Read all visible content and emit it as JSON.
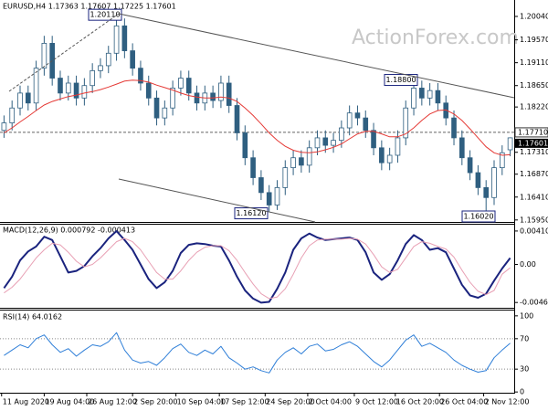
{
  "chart_data": [
    {
      "type": "candlestick",
      "title": "EURUSD,H4 1.17363 1.17607 1.17225 1.17601",
      "watermark": "ActionForex.com",
      "xlim": [
        0,
        64
      ],
      "ylim": [
        1.1591,
        1.2037
      ],
      "color": "#2f5f80",
      "up_fill": "#ffffff",
      "yticks": [
        {
          "value": 1.2004,
          "label": "1.20040"
        },
        {
          "value": 1.1957,
          "label": "1.19570"
        },
        {
          "value": 1.1911,
          "label": "1.19110"
        },
        {
          "value": 1.1865,
          "label": "1.18650"
        },
        {
          "value": 1.1822,
          "label": "1.18220"
        },
        {
          "value": 1.1731,
          "label": "1.17310"
        },
        {
          "value": 1.1687,
          "label": "1.16870"
        },
        {
          "value": 1.1641,
          "label": "1.16410"
        },
        {
          "value": 1.1595,
          "label": "1.15950"
        }
      ],
      "candles": {
        "open": [
          1.1775,
          1.179,
          1.182,
          1.185,
          1.183,
          1.19,
          1.195,
          1.188,
          1.185,
          1.187,
          1.184,
          1.1865,
          1.1895,
          1.1905,
          1.193,
          1.1985,
          1.1935,
          1.19,
          1.187,
          1.184,
          1.18,
          1.182,
          1.186,
          1.188,
          1.185,
          1.183,
          1.185,
          1.1835,
          1.187,
          1.1825,
          1.177,
          1.172,
          1.168,
          1.165,
          1.1625,
          1.166,
          1.17,
          1.172,
          1.1705,
          1.174,
          1.176,
          1.1745,
          1.1755,
          1.178,
          1.181,
          1.18,
          1.1775,
          1.174,
          1.171,
          1.1725,
          1.176,
          1.182,
          1.186,
          1.184,
          1.1855,
          1.183,
          1.18,
          1.176,
          1.172,
          1.169,
          1.166,
          1.164,
          1.17,
          1.1736
        ],
        "high": [
          1.1805,
          1.1835,
          1.1865,
          1.1865,
          1.1915,
          1.1965,
          1.1965,
          1.1895,
          1.1885,
          1.1885,
          1.188,
          1.191,
          1.192,
          1.1945,
          1.2011,
          1.2,
          1.195,
          1.1915,
          1.1885,
          1.1855,
          1.1835,
          1.1875,
          1.1895,
          1.1895,
          1.1865,
          1.1865,
          1.1865,
          1.1885,
          1.1885,
          1.184,
          1.1785,
          1.1735,
          1.1695,
          1.1665,
          1.1675,
          1.1715,
          1.1735,
          1.1735,
          1.1755,
          1.1775,
          1.1775,
          1.177,
          1.1795,
          1.1825,
          1.1825,
          1.1815,
          1.179,
          1.1755,
          1.174,
          1.1775,
          1.1835,
          1.188,
          1.1875,
          1.187,
          1.187,
          1.1845,
          1.1815,
          1.1775,
          1.1735,
          1.1705,
          1.1675,
          1.1715,
          1.1745,
          1.1761
        ],
        "low": [
          1.176,
          1.1775,
          1.1805,
          1.1815,
          1.1815,
          1.1885,
          1.1865,
          1.1835,
          1.1835,
          1.1825,
          1.1825,
          1.185,
          1.188,
          1.189,
          1.1915,
          1.192,
          1.1885,
          1.1855,
          1.1825,
          1.1785,
          1.1785,
          1.1805,
          1.1845,
          1.1835,
          1.1815,
          1.1815,
          1.182,
          1.182,
          1.181,
          1.1755,
          1.1705,
          1.1665,
          1.1635,
          1.1612,
          1.1615,
          1.1645,
          1.1685,
          1.169,
          1.169,
          1.1725,
          1.173,
          1.173,
          1.174,
          1.1765,
          1.1785,
          1.176,
          1.1725,
          1.1695,
          1.1695,
          1.171,
          1.1745,
          1.1805,
          1.1825,
          1.1825,
          1.1815,
          1.1785,
          1.1745,
          1.1705,
          1.1675,
          1.1645,
          1.1602,
          1.1625,
          1.1685,
          1.1723
        ],
        "close": [
          1.179,
          1.182,
          1.185,
          1.183,
          1.19,
          1.195,
          1.188,
          1.185,
          1.187,
          1.184,
          1.1865,
          1.1895,
          1.1905,
          1.193,
          1.1985,
          1.1935,
          1.19,
          1.187,
          1.184,
          1.18,
          1.182,
          1.186,
          1.188,
          1.185,
          1.183,
          1.185,
          1.1835,
          1.187,
          1.1825,
          1.177,
          1.172,
          1.168,
          1.165,
          1.1625,
          1.166,
          1.17,
          1.172,
          1.1705,
          1.174,
          1.176,
          1.1745,
          1.1755,
          1.178,
          1.181,
          1.18,
          1.1775,
          1.174,
          1.171,
          1.1725,
          1.176,
          1.182,
          1.186,
          1.184,
          1.1855,
          1.183,
          1.18,
          1.176,
          1.172,
          1.169,
          1.166,
          1.164,
          1.17,
          1.173,
          1.176
        ]
      },
      "overlay": {
        "color": "#e53935",
        "values": [
          1.177,
          1.178,
          1.1792,
          1.1803,
          1.1815,
          1.1826,
          1.1833,
          1.1838,
          1.1843,
          1.1846,
          1.185,
          1.1853,
          1.1857,
          1.1862,
          1.1868,
          1.1874,
          1.1876,
          1.1875,
          1.1872,
          1.1866,
          1.1861,
          1.1856,
          1.185,
          1.1845,
          1.1842,
          1.184,
          1.184,
          1.1842,
          1.184,
          1.1833,
          1.182,
          1.1805,
          1.1788,
          1.177,
          1.1755,
          1.1743,
          1.1735,
          1.1731,
          1.173,
          1.1732,
          1.1736,
          1.1741,
          1.1748,
          1.1758,
          1.1768,
          1.1773,
          1.1773,
          1.1768,
          1.1762,
          1.1762,
          1.1768,
          1.178,
          1.1795,
          1.1808,
          1.1815,
          1.1816,
          1.1808,
          1.1795,
          1.1778,
          1.176,
          1.1742,
          1.173,
          1.1725,
          1.1726
        ]
      },
      "annotations": [
        {
          "value": 1.2011,
          "label": "1.20110"
        },
        {
          "value": 1.188,
          "label": "1.18800"
        },
        {
          "value": 1.1612,
          "label": "1.16120"
        },
        {
          "value": 1.1602,
          "label": "1.16020"
        }
      ],
      "price_lines": [
        {
          "value": 1.1771,
          "label": "1.17710"
        }
      ],
      "last_price": {
        "value": 1.17601,
        "label": "1.17601"
      }
    },
    {
      "type": "line",
      "title": "MACD(12,26,9) 0.000792 -0.000413",
      "xlim": [
        0,
        64
      ],
      "ylim": [
        -0.00533,
        0.004885
      ],
      "yticks": [
        0.004108,
        {
          "value": 0,
          "label": "0.00"
        },
        -0.004678
      ],
      "series": [
        {
          "color": "#1a237e",
          "line_width": 2,
          "values": [
            -0.0029,
            -0.0015,
            0.0005,
            0.0016,
            0.0022,
            0.0034,
            0.003,
            0.001,
            -0.001,
            -0.0008,
            -0.0002,
            0.001,
            0.002,
            0.0032,
            0.0041,
            0.003,
            0.0018,
            0,
            -0.0018,
            -0.0029,
            -0.0022,
            -0.0008,
            0.0014,
            0.0024,
            0.0026,
            0.0025,
            0.0023,
            0.0022,
            0.0005,
            -0.0015,
            -0.0032,
            -0.0042,
            -0.0047,
            -0.0046,
            -0.003,
            -0.001,
            0.0018,
            0.0032,
            0.0038,
            0.0033,
            0.003,
            0.0031,
            0.0032,
            0.0033,
            0.003,
            0.0015,
            -0.001,
            -0.0019,
            -0.0012,
            0.0005,
            0.0025,
            0.0036,
            0.003,
            0.0018,
            0.002,
            0.0015,
            -0.0005,
            -0.0025,
            -0.0038,
            -0.0041,
            -0.0036,
            -0.002,
            -0.0005,
            0.000792
          ]
        },
        {
          "color": "#e8a0b4",
          "line_width": 1,
          "values": [
            -0.0035,
            -0.0028,
            -0.0018,
            -0.0005,
            0.0008,
            0.0018,
            0.0026,
            0.0024,
            0.0015,
            0.0004,
            -0.0003,
            0,
            0.0008,
            0.0018,
            0.0028,
            0.0032,
            0.0028,
            0.0018,
            0.0004,
            -0.001,
            -0.0018,
            -0.0018,
            -0.0008,
            0.0005,
            0.0015,
            0.0021,
            0.0023,
            0.0023,
            0.0017,
            0.0005,
            -0.001,
            -0.0024,
            -0.0036,
            -0.0042,
            -0.004,
            -0.003,
            -0.0012,
            0.0008,
            0.0023,
            0.003,
            0.0031,
            0.0031,
            0.0031,
            0.0032,
            0.0031,
            0.0025,
            0.0012,
            -0.0003,
            -0.001,
            -0.0006,
            0.0008,
            0.0022,
            0.0028,
            0.0026,
            0.0022,
            0.0019,
            0.0009,
            -0.0007,
            -0.0022,
            -0.0033,
            -0.0037,
            -0.0032,
            -0.0012,
            -0.000413
          ]
        }
      ]
    },
    {
      "type": "line",
      "title": "RSI(14) 64.0162",
      "xlim": [
        0,
        64
      ],
      "ylim": [
        -1,
        107
      ],
      "yticks": [
        100,
        70,
        30,
        0
      ],
      "levels": [
        70,
        30
      ],
      "xticks": [
        {
          "value": 0.2,
          "label": "11 Aug 2020"
        },
        {
          "value": 5.5,
          "label": "19 Aug 04:00"
        },
        {
          "value": 10.8,
          "label": "26 Aug 12:00"
        },
        {
          "value": 16.5,
          "label": "2 Sep 20:00"
        },
        {
          "value": 21.9,
          "label": "10 Sep 04:00"
        },
        {
          "value": 27.3,
          "label": "17 Sep 12:00"
        },
        {
          "value": 33,
          "label": "24 Sep 20:00"
        },
        {
          "value": 38.3,
          "label": "2 Oct 04:00"
        },
        {
          "value": 44.1,
          "label": "9 Oct 12:00"
        },
        {
          "value": 49.2,
          "label": "16 Oct 20:00"
        },
        {
          "value": 54.7,
          "label": "26 Oct 04:00"
        },
        {
          "value": 60.2,
          "label": "2 Nov 12:00"
        }
      ],
      "series": [
        {
          "color": "#2f7fd8",
          "line_width": 1,
          "values": [
            48,
            55,
            62,
            58,
            70,
            75,
            62,
            52,
            57,
            47,
            55,
            62,
            60,
            66,
            78,
            55,
            42,
            38,
            40,
            35,
            45,
            57,
            63,
            52,
            48,
            55,
            50,
            60,
            45,
            38,
            30,
            33,
            28,
            25,
            42,
            52,
            58,
            50,
            60,
            63,
            54,
            56,
            62,
            66,
            60,
            50,
            40,
            33,
            42,
            55,
            68,
            75,
            60,
            64,
            58,
            52,
            42,
            35,
            30,
            26,
            28,
            45,
            55,
            64.0162
          ]
        }
      ]
    }
  ]
}
